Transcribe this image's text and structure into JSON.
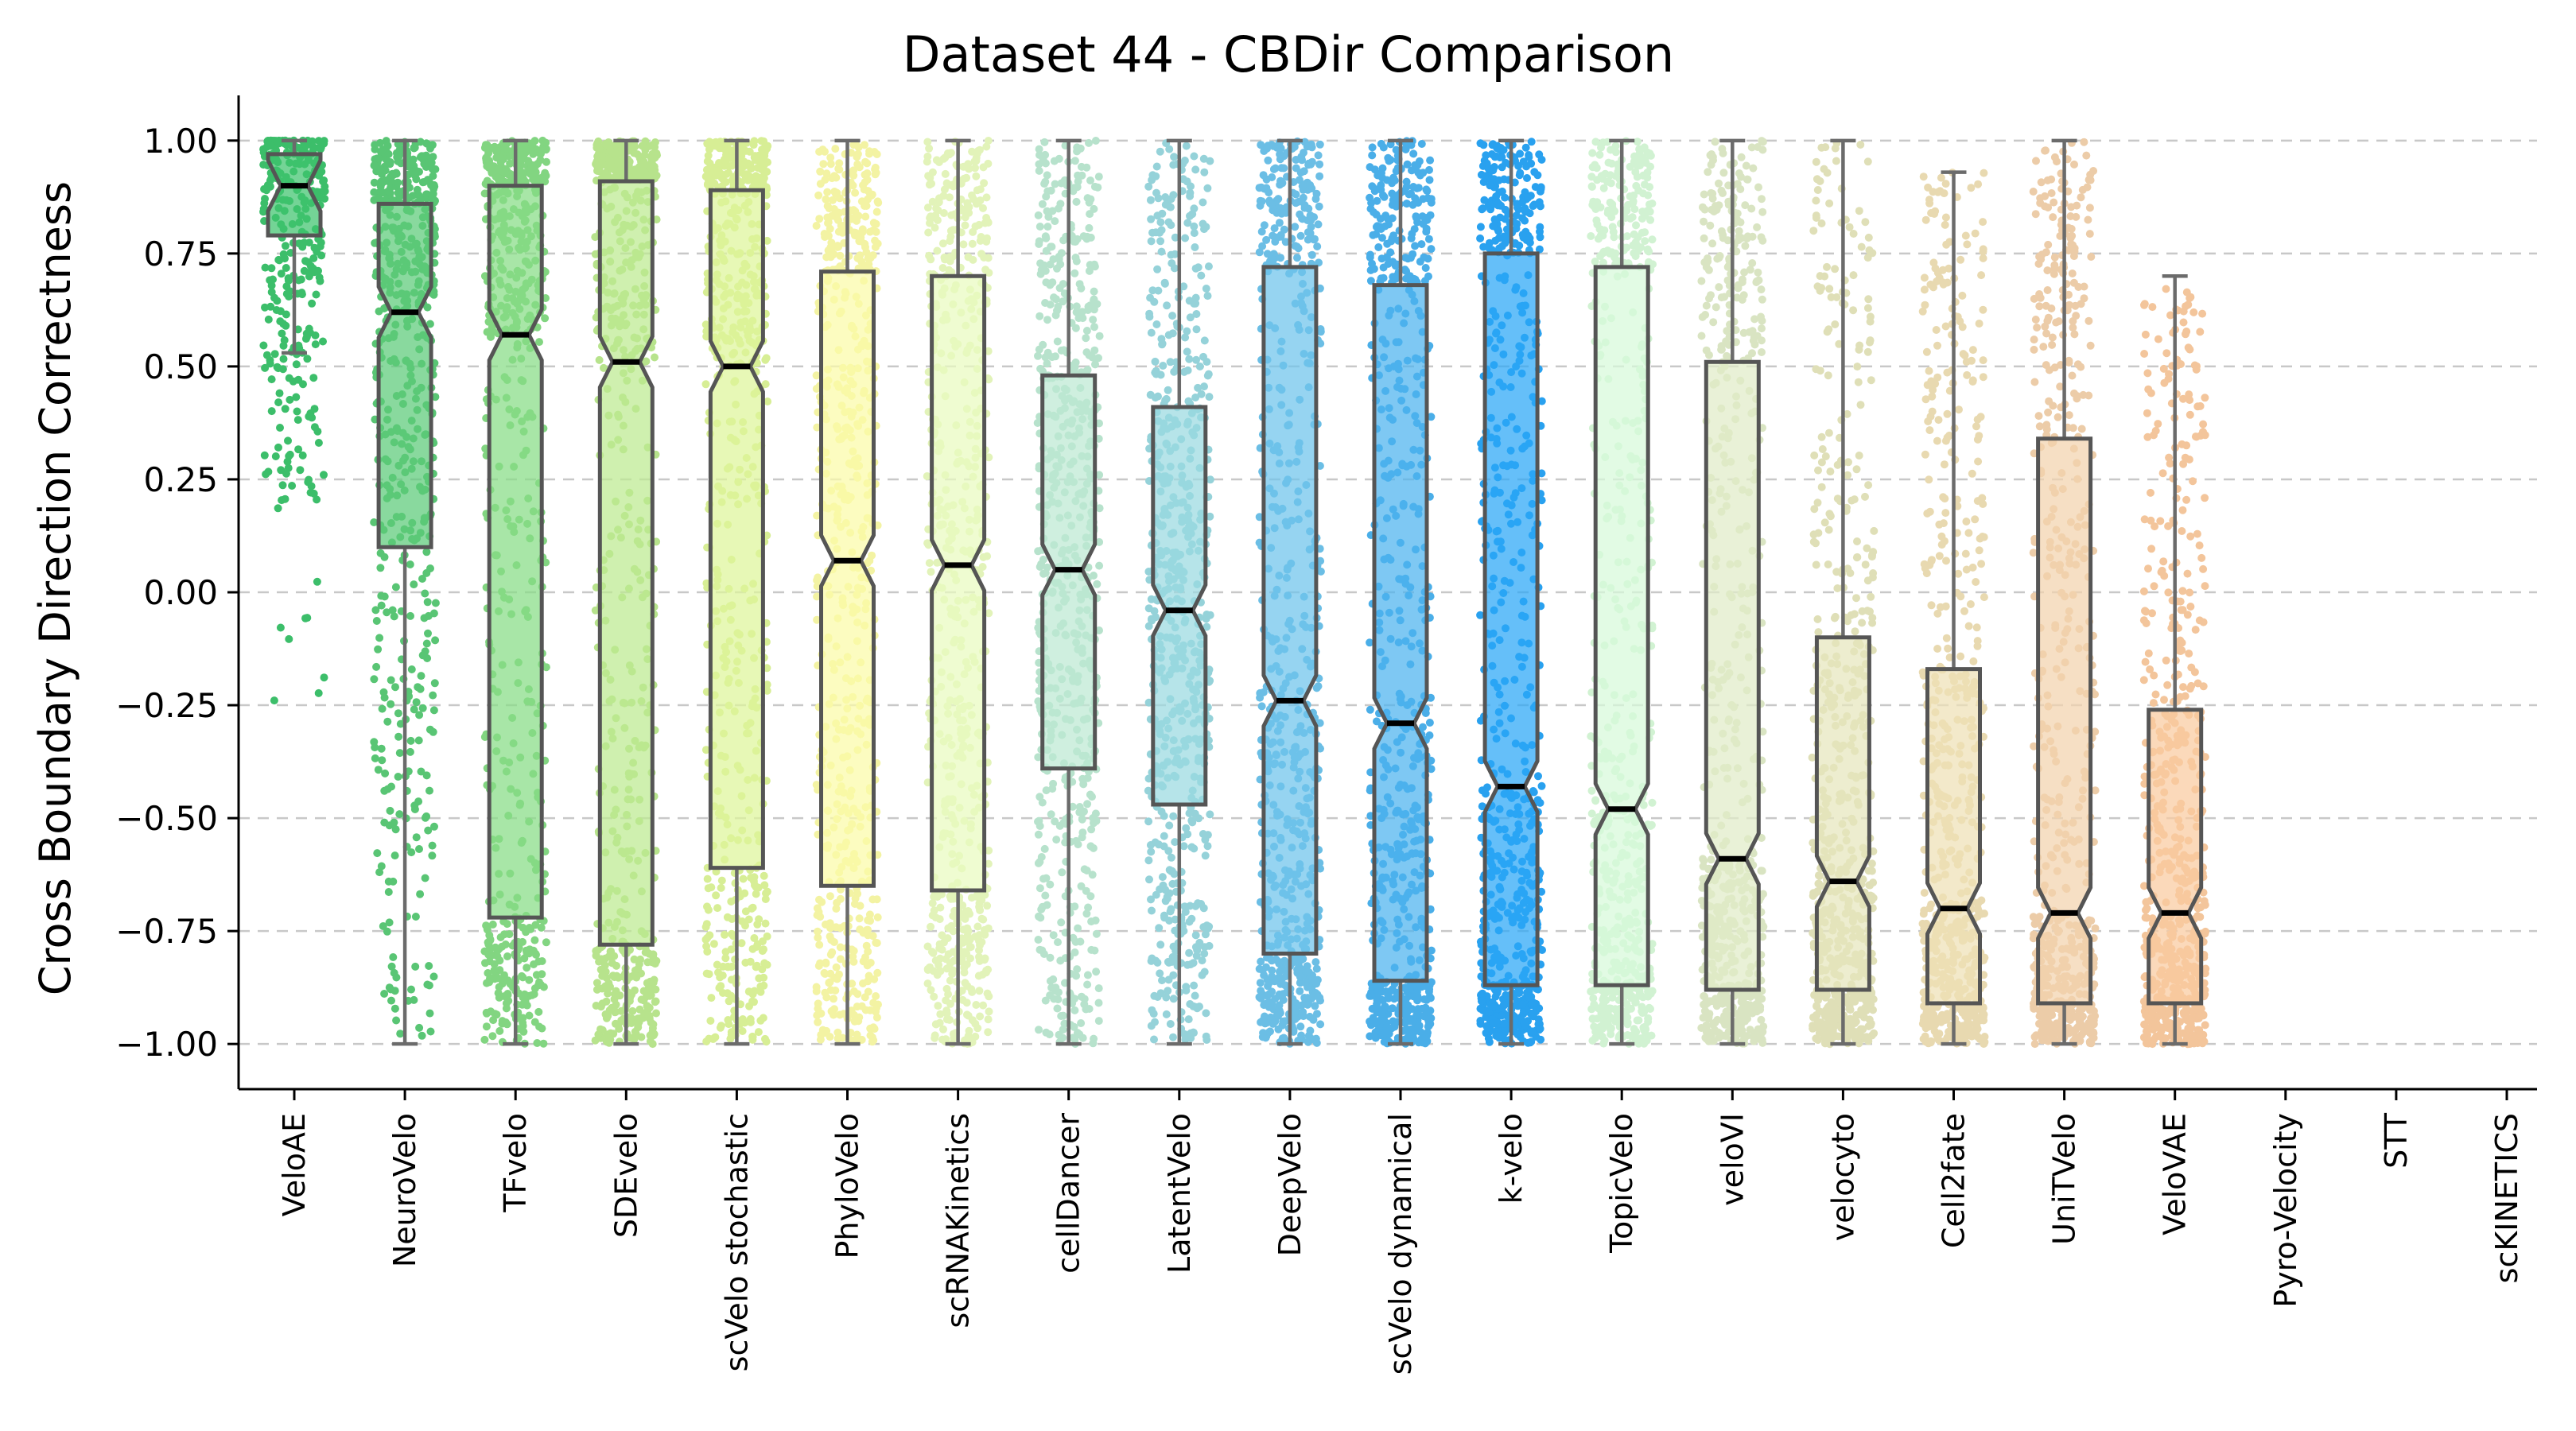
{
  "chart_data": {
    "type": "box",
    "title": "Dataset 44 - CBDir Comparison",
    "xlabel": "",
    "ylabel": "Cross Boundary Direction Correctness",
    "ylim": [
      -1.1,
      1.1
    ],
    "yticks": [
      1.0,
      0.75,
      0.5,
      0.25,
      0.0,
      -0.25,
      -0.5,
      -0.75,
      -1.0
    ],
    "ytick_labels": [
      "1.00",
      "0.75",
      "0.50",
      "0.25",
      "0.00",
      "−0.25",
      "−0.50",
      "−0.75",
      "−1.00"
    ],
    "grid": "horizontal dashed",
    "notched": true,
    "jittered_points": true,
    "categories": [
      "VeloAE",
      "NeuroVelo",
      "TFvelo",
      "SDEvelo",
      "scVelo stochastic",
      "PhyloVelo",
      "scRNAKinetics",
      "cellDancer",
      "LatentVelo",
      "DeepVelo",
      "scVelo dynamical",
      "k-velo",
      "TopicVelo",
      "veloVI",
      "velocyto",
      "Cell2fate",
      "UniTVelo",
      "VeloVAE",
      "Pyro-Velocity",
      "STT",
      "scKINETICS"
    ],
    "series": [
      {
        "method": "VeloAE",
        "color": "#3ec46d",
        "whisker_low": 0.53,
        "q1": 0.79,
        "median": 0.9,
        "q3": 0.97,
        "whisker_high": 1.0,
        "n_points": 320,
        "dense_min": 0.25
      },
      {
        "method": "NeuroVelo",
        "color": "#5ccb78",
        "whisker_low": -1.0,
        "q1": 0.1,
        "median": 0.62,
        "q3": 0.86,
        "whisker_high": 1.0,
        "n_points": 560,
        "dense_min": -1.0
      },
      {
        "method": "TFvelo",
        "color": "#86dc85",
        "whisker_low": -1.0,
        "q1": -0.72,
        "median": 0.57,
        "q3": 0.9,
        "whisker_high": 1.0,
        "n_points": 620,
        "dense_min": -1.0
      },
      {
        "method": "SDEvelo",
        "color": "#bdea90",
        "whisker_low": -1.0,
        "q1": -0.78,
        "median": 0.51,
        "q3": 0.91,
        "whisker_high": 1.0,
        "n_points": 620,
        "dense_min": -1.0
      },
      {
        "method": "scVelo stochastic",
        "color": "#def59a",
        "whisker_low": -1.0,
        "q1": -0.61,
        "median": 0.5,
        "q3": 0.89,
        "whisker_high": 1.0,
        "n_points": 620,
        "dense_min": -1.0
      },
      {
        "method": "PhyloVelo",
        "color": "#fbfba8",
        "whisker_low": -1.0,
        "q1": -0.65,
        "median": 0.07,
        "q3": 0.71,
        "whisker_high": 1.0,
        "n_points": 620,
        "dense_min": -1.0
      },
      {
        "method": "scRNAKinetics",
        "color": "#e9fbbf",
        "whisker_low": -1.0,
        "q1": -0.66,
        "median": 0.06,
        "q3": 0.7,
        "whisker_high": 1.0,
        "n_points": 620,
        "dense_min": -1.0
      },
      {
        "method": "cellDancer",
        "color": "#bde9d2",
        "whisker_low": -1.0,
        "q1": -0.39,
        "median": 0.05,
        "q3": 0.48,
        "whisker_high": 1.0,
        "n_points": 620,
        "dense_min": -1.0
      },
      {
        "method": "LatentVelo",
        "color": "#9ad9e0",
        "whisker_low": -1.0,
        "q1": -0.47,
        "median": -0.04,
        "q3": 0.41,
        "whisker_high": 1.0,
        "n_points": 620,
        "dense_min": -1.0
      },
      {
        "method": "DeepVelo",
        "color": "#6ec4ec",
        "whisker_low": -1.0,
        "q1": -0.8,
        "median": -0.24,
        "q3": 0.72,
        "whisker_high": 1.0,
        "n_points": 660,
        "dense_min": -1.0
      },
      {
        "method": "scVelo dynamical",
        "color": "#4cb3ef",
        "whisker_low": -1.0,
        "q1": -0.86,
        "median": -0.29,
        "q3": 0.68,
        "whisker_high": 1.0,
        "n_points": 680,
        "dense_min": -1.0
      },
      {
        "method": "k-velo",
        "color": "#2aa6f6",
        "whisker_low": -1.0,
        "q1": -0.87,
        "median": -0.43,
        "q3": 0.75,
        "whisker_high": 1.0,
        "n_points": 720,
        "dense_min": -1.0
      },
      {
        "method": "TopicVelo",
        "color": "#d7f9d9",
        "whisker_low": -1.0,
        "q1": -0.87,
        "median": -0.48,
        "q3": 0.72,
        "whisker_high": 1.0,
        "n_points": 620,
        "dense_min": -1.0
      },
      {
        "method": "veloVI",
        "color": "#e0ebc8",
        "whisker_low": -1.0,
        "q1": -0.88,
        "median": -0.59,
        "q3": 0.51,
        "whisker_high": 1.0,
        "n_points": 620,
        "dense_min": -1.0
      },
      {
        "method": "velocyto",
        "color": "#e6e6bd",
        "whisker_low": -1.0,
        "q1": -0.88,
        "median": -0.64,
        "q3": -0.1,
        "whisker_high": 1.0,
        "n_points": 620,
        "dense_min": -1.0
      },
      {
        "method": "Cell2fate",
        "color": "#efe0b5",
        "whisker_low": -1.0,
        "q1": -0.91,
        "median": -0.7,
        "q3": -0.17,
        "whisker_high": 0.93,
        "n_points": 620,
        "dense_min": -1.0
      },
      {
        "method": "UniTVelo",
        "color": "#f3d2ad",
        "whisker_low": -1.0,
        "q1": -0.91,
        "median": -0.71,
        "q3": 0.34,
        "whisker_high": 1.0,
        "n_points": 620,
        "dense_min": -1.0
      },
      {
        "method": "VeloVAE",
        "color": "#facba0",
        "whisker_low": -1.0,
        "q1": -0.91,
        "median": -0.71,
        "q3": -0.26,
        "whisker_high": 0.7,
        "n_points": 620,
        "dense_min": -1.0
      },
      {
        "method": "Pyro-Velocity",
        "color": "#ffffff",
        "empty": true
      },
      {
        "method": "STT",
        "color": "#ffffff",
        "empty": true
      },
      {
        "method": "scKINETICS",
        "color": "#ffffff",
        "empty": true
      }
    ]
  }
}
